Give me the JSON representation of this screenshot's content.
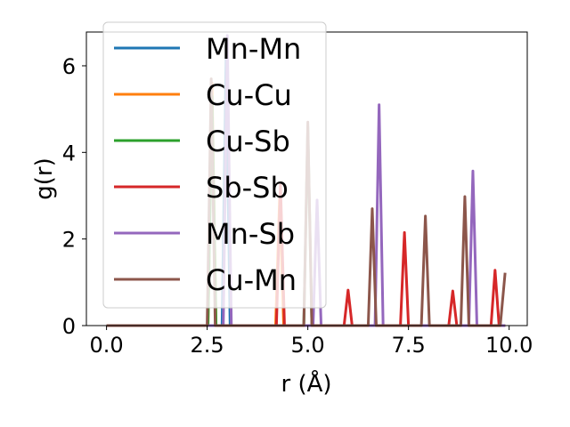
{
  "chart_data": {
    "type": "line",
    "xlabel": "r (Å)",
    "ylabel": "g(r)",
    "xlim": [
      -0.5,
      10.45
    ],
    "ylim": [
      0,
      6.78
    ],
    "xticks": [
      0.0,
      2.5,
      5.0,
      7.5,
      10.0
    ],
    "xtick_labels": [
      "0.0",
      "2.5",
      "5.0",
      "7.5",
      "10.0"
    ],
    "yticks": [
      0,
      2,
      4,
      6
    ],
    "ytick_labels": [
      "0",
      "2",
      "4",
      "6"
    ],
    "grid": false,
    "legend_position": "top-left",
    "series": [
      {
        "name": "Mn-Mn",
        "color": "#1f77b4",
        "peaks": [
          [
            2.97,
            6.2
          ]
        ]
      },
      {
        "name": "Cu-Cu",
        "color": "#ff7f0e",
        "peaks": [
          [
            2.62,
            5.6
          ],
          [
            4.3,
            3.0
          ]
        ]
      },
      {
        "name": "Cu-Sb",
        "color": "#2ca02c",
        "peaks": [
          [
            2.62,
            5.3
          ],
          [
            5.0,
            4.6
          ]
        ]
      },
      {
        "name": "Sb-Sb",
        "color": "#d62728",
        "peaks": [
          [
            4.32,
            3.3
          ],
          [
            6.0,
            0.82
          ],
          [
            7.4,
            2.15
          ],
          [
            8.6,
            0.8
          ],
          [
            9.65,
            1.28
          ]
        ]
      },
      {
        "name": "Mn-Sb",
        "color": "#9467bd",
        "peaks": [
          [
            3.0,
            6.7
          ],
          [
            5.23,
            2.9
          ],
          [
            6.77,
            5.1
          ],
          [
            9.1,
            3.57
          ]
        ]
      },
      {
        "name": "Cu-Mn",
        "color": "#8c564b",
        "peaks": [
          [
            2.6,
            5.7
          ],
          [
            5.0,
            4.7
          ],
          [
            6.6,
            2.7
          ],
          [
            7.92,
            2.53
          ],
          [
            8.9,
            2.98
          ],
          [
            9.88,
            1.22
          ]
        ]
      }
    ]
  }
}
